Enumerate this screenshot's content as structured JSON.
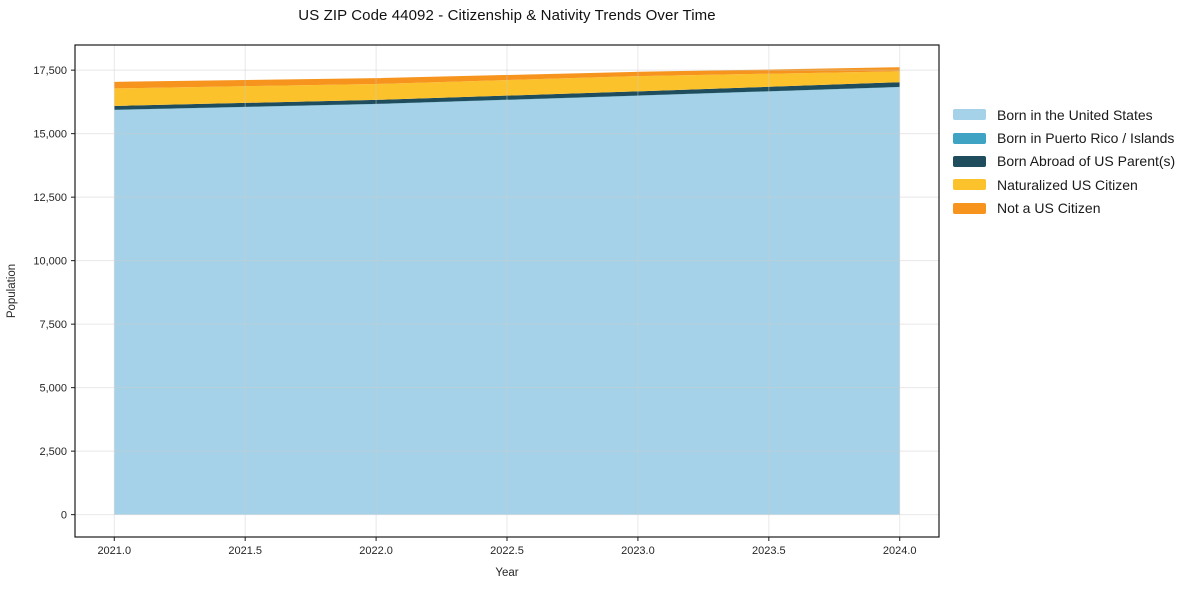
{
  "chart_data": {
    "type": "area",
    "stacked": true,
    "title": "US ZIP Code 44092 - Citizenship & Nativity Trends Over Time",
    "xlabel": "Year",
    "ylabel": "Population",
    "x": [
      2021,
      2022,
      2023,
      2024
    ],
    "series": [
      {
        "name": "Born in the United States",
        "color": "#a5d2e8",
        "values": [
          15930,
          16160,
          16490,
          16830
        ]
      },
      {
        "name": "Born in Puerto Rico / Islands",
        "color": "#3fa4c4",
        "values": [
          10,
          10,
          10,
          10
        ]
      },
      {
        "name": "Born Abroad of US Parent(s)",
        "color": "#1f4d5e",
        "values": [
          150,
          160,
          165,
          185
        ]
      },
      {
        "name": "Naturalized US Citizen",
        "color": "#fcc22c",
        "values": [
          690,
          625,
          600,
          430
        ]
      },
      {
        "name": "Not a US Citizen",
        "color": "#f6941d",
        "values": [
          260,
          230,
          170,
          160
        ]
      }
    ],
    "xlim": [
      2020.85,
      2024.15
    ],
    "ylim": [
      -880,
      18490
    ],
    "xticks": [
      {
        "value": 2021.0,
        "label": "2021.0"
      },
      {
        "value": 2021.5,
        "label": "2021.5"
      },
      {
        "value": 2022.0,
        "label": "2022.0"
      },
      {
        "value": 2022.5,
        "label": "2022.5"
      },
      {
        "value": 2023.0,
        "label": "2023.0"
      },
      {
        "value": 2023.5,
        "label": "2023.5"
      },
      {
        "value": 2024.0,
        "label": "2024.0"
      }
    ],
    "yticks": [
      {
        "value": 0,
        "label": "0"
      },
      {
        "value": 2500,
        "label": "2,500"
      },
      {
        "value": 5000,
        "label": "5,000"
      },
      {
        "value": 7500,
        "label": "7,500"
      },
      {
        "value": 10000,
        "label": "10,000"
      },
      {
        "value": 12500,
        "label": "12,500"
      },
      {
        "value": 15000,
        "label": "15,000"
      },
      {
        "value": 17500,
        "label": "17,500"
      }
    ],
    "grid": true,
    "grid_color": "#cccccc",
    "spine_color": "#1a1a1a",
    "legend_position": "right-outside"
  }
}
